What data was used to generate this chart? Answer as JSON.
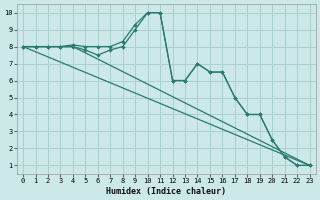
{
  "xlabel": "Humidex (Indice chaleur)",
  "bg_color": "#cce8e8",
  "line_color": "#2a7a6e",
  "grid_color": "#aad0d0",
  "xlim": [
    -0.5,
    23.5
  ],
  "ylim": [
    0.5,
    10.5
  ],
  "xticks": [
    0,
    1,
    2,
    3,
    4,
    5,
    6,
    7,
    8,
    9,
    10,
    11,
    12,
    13,
    14,
    15,
    16,
    17,
    18,
    19,
    20,
    21,
    22,
    23
  ],
  "yticks": [
    1,
    2,
    3,
    4,
    5,
    6,
    7,
    8,
    9,
    10
  ],
  "line1_x": [
    0,
    1,
    2,
    3,
    4,
    5,
    6,
    7,
    8,
    9,
    10,
    11,
    12,
    13,
    14,
    15,
    16,
    17,
    18,
    19,
    20,
    21,
    22,
    23
  ],
  "line1_y": [
    8,
    8,
    8,
    8,
    8.1,
    8,
    8,
    8,
    8.3,
    9.3,
    10,
    10,
    6,
    6,
    7,
    6.5,
    6.5,
    5,
    4,
    4,
    2.5,
    1.5,
    1,
    1
  ],
  "line2_x": [
    0,
    1,
    2,
    3,
    4,
    5,
    6,
    7,
    8,
    9,
    10,
    11,
    12,
    13,
    14,
    15,
    16,
    17,
    18,
    19,
    20,
    21,
    22,
    23
  ],
  "line2_y": [
    8,
    8,
    8,
    8,
    8,
    7.8,
    7.5,
    7.8,
    8,
    9,
    10,
    10,
    6,
    6,
    7,
    6.5,
    6.5,
    5,
    4,
    4,
    2.5,
    1.5,
    1,
    1
  ],
  "line3_x": [
    0,
    23
  ],
  "line3_y": [
    8,
    1
  ],
  "line4_x": [
    0,
    4,
    23
  ],
  "line4_y": [
    8,
    8,
    1
  ],
  "xlabel_fontsize": 6,
  "tick_fontsize": 5
}
